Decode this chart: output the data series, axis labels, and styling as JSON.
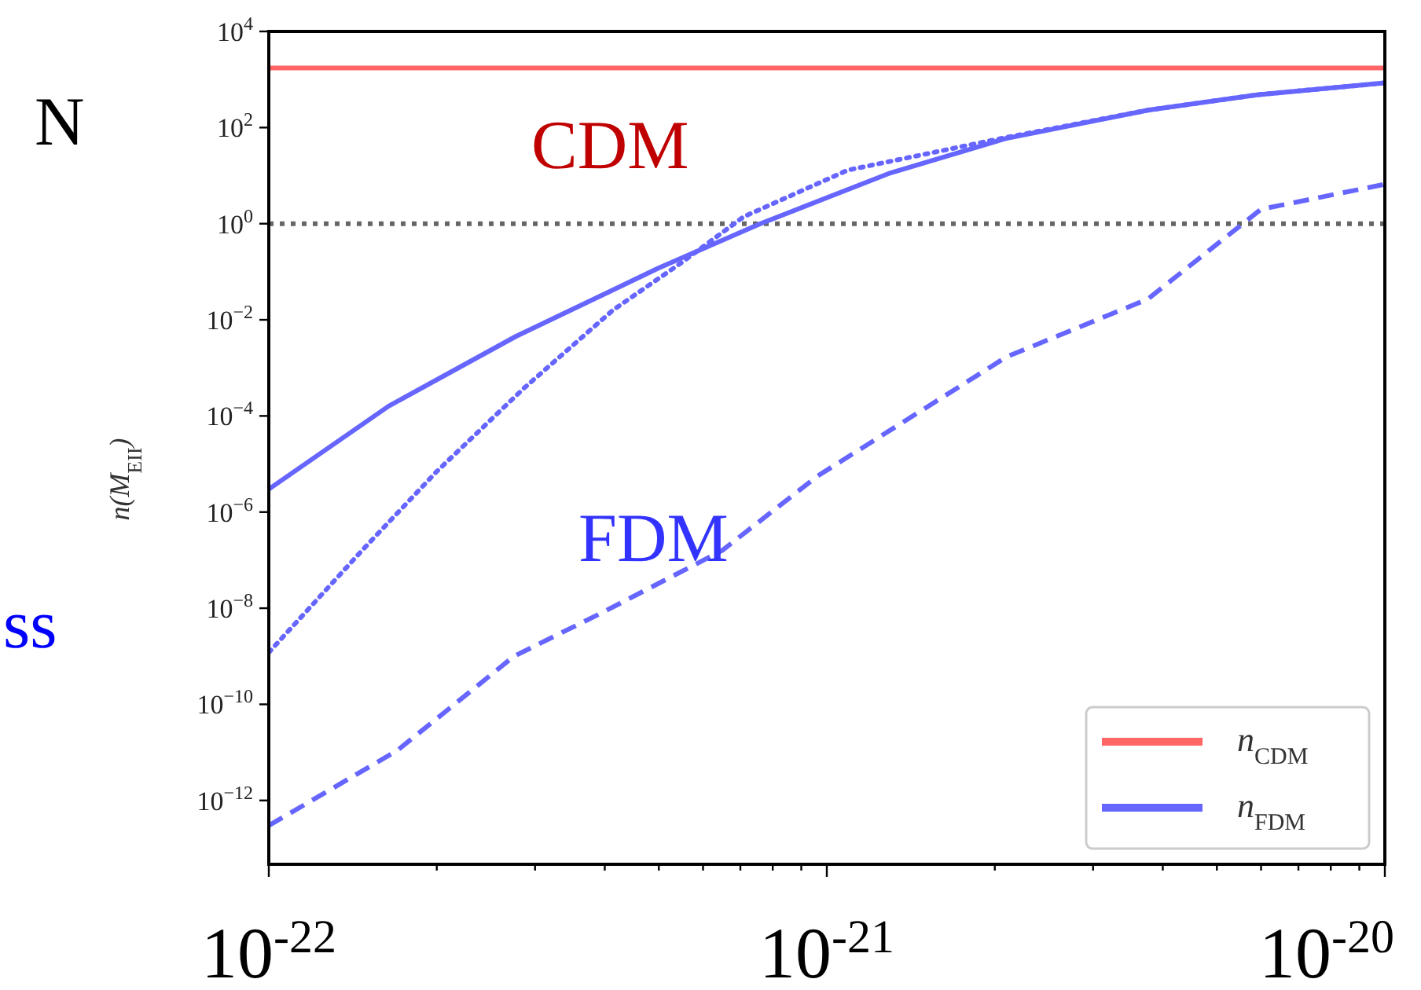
{
  "chart_data": {
    "type": "line",
    "ylabel": "n(M$_{EII}$)",
    "log": "xy",
    "xlim": [
      1e-22,
      1e-20
    ],
    "ylim": [
      4.7e-14,
      10000
    ],
    "xticks": [
      {
        "value": 1e-22,
        "label": "10$^{-22}$"
      },
      {
        "value": 2e-22,
        "label": null
      },
      {
        "value": 3e-22,
        "label": null
      },
      {
        "value": 4e-22,
        "label": null
      },
      {
        "value": 5e-22,
        "label": null
      },
      {
        "value": 6e-22,
        "label": null
      },
      {
        "value": 7e-22,
        "label": null
      },
      {
        "value": 8e-22,
        "label": null
      },
      {
        "value": 9e-22,
        "label": null
      },
      {
        "value": 1e-21,
        "label": "10$^{-21}$"
      },
      {
        "value": 2e-21,
        "label": null
      },
      {
        "value": 3e-21,
        "label": null
      },
      {
        "value": 4e-21,
        "label": null
      },
      {
        "value": 5e-21,
        "label": null
      },
      {
        "value": 6e-21,
        "label": null
      },
      {
        "value": 7e-21,
        "label": null
      },
      {
        "value": 8e-21,
        "label": null
      },
      {
        "value": 9e-21,
        "label": null
      },
      {
        "value": 1e-20,
        "label": "10$^{-20}$"
      }
    ],
    "yticks": [
      {
        "value": 10000,
        "label": "10$^{4}$"
      },
      {
        "value": 100,
        "label": "10$^{2}$"
      },
      {
        "value": 1,
        "label": "10$^{0}$"
      },
      {
        "value": 0.01,
        "label": "10$^{−2}$"
      },
      {
        "value": 0.0001,
        "label": "10$^{−4}$"
      },
      {
        "value": 1e-06,
        "label": "10$^{−6}$"
      },
      {
        "value": 1e-08,
        "label": "10$^{−8}$"
      },
      {
        "value": 1e-10,
        "label": "10$^{−10}$"
      },
      {
        "value": 1e-12,
        "label": "10$^{−12}$"
      }
    ],
    "series": [
      {
        "name": "n$_{CDM}$",
        "color": "#ff6666",
        "line_style": "solid",
        "x": [
          1e-22,
          1e-20
        ],
        "values": [
          1740,
          1740
        ]
      },
      {
        "name": "n$_{FDM}$",
        "color": "#6666ff",
        "line_style": "solid",
        "x": [
          1e-22,
          1.64e-22,
          2.77e-22,
          5e-22,
          7.6e-22,
          1.29e-21,
          2.09e-21,
          3.76e-21,
          5.9e-21,
          1e-20
        ],
        "values": [
          3e-06,
          0.00016,
          0.0045,
          0.12,
          1.0,
          11,
          59,
          230,
          480,
          850
        ]
      },
      {
        "color": "#6666ff",
        "line_style": "dotted",
        "x": [
          1e-22,
          1.47e-22,
          2e-22,
          2.86e-22,
          4.14e-22,
          5.47e-22,
          7.1e-22,
          1.09e-21,
          2.09e-21,
          3.76e-21,
          5.9e-21,
          1e-20
        ],
        "values": [
          1.2e-09,
          1.6e-07,
          7e-06,
          0.00037,
          0.016,
          0.15,
          1.4,
          13,
          62,
          230,
          480,
          850
        ]
      },
      {
        "color": "#6666ff",
        "line_style": "dashed",
        "x": [
          1e-22,
          1.7e-22,
          2.75e-22,
          3.95e-22,
          6.5e-22,
          9.6e-22,
          2.1e-21,
          3.76e-21,
          6e-21,
          1e-20
        ],
        "values": [
          3e-13,
          1.1e-11,
          1e-09,
          8e-09,
          1.6e-07,
          5.5e-06,
          0.0017,
          0.027,
          2.0,
          6.6
        ]
      }
    ],
    "ref_lines": [
      {
        "axis": "y",
        "value": 1,
        "color": "#666666",
        "line_style": "dotted"
      }
    ],
    "annotations": [
      "CDM",
      "FDM",
      "N",
      "ss"
    ],
    "legend": "bottom right",
    "grid": false
  }
}
